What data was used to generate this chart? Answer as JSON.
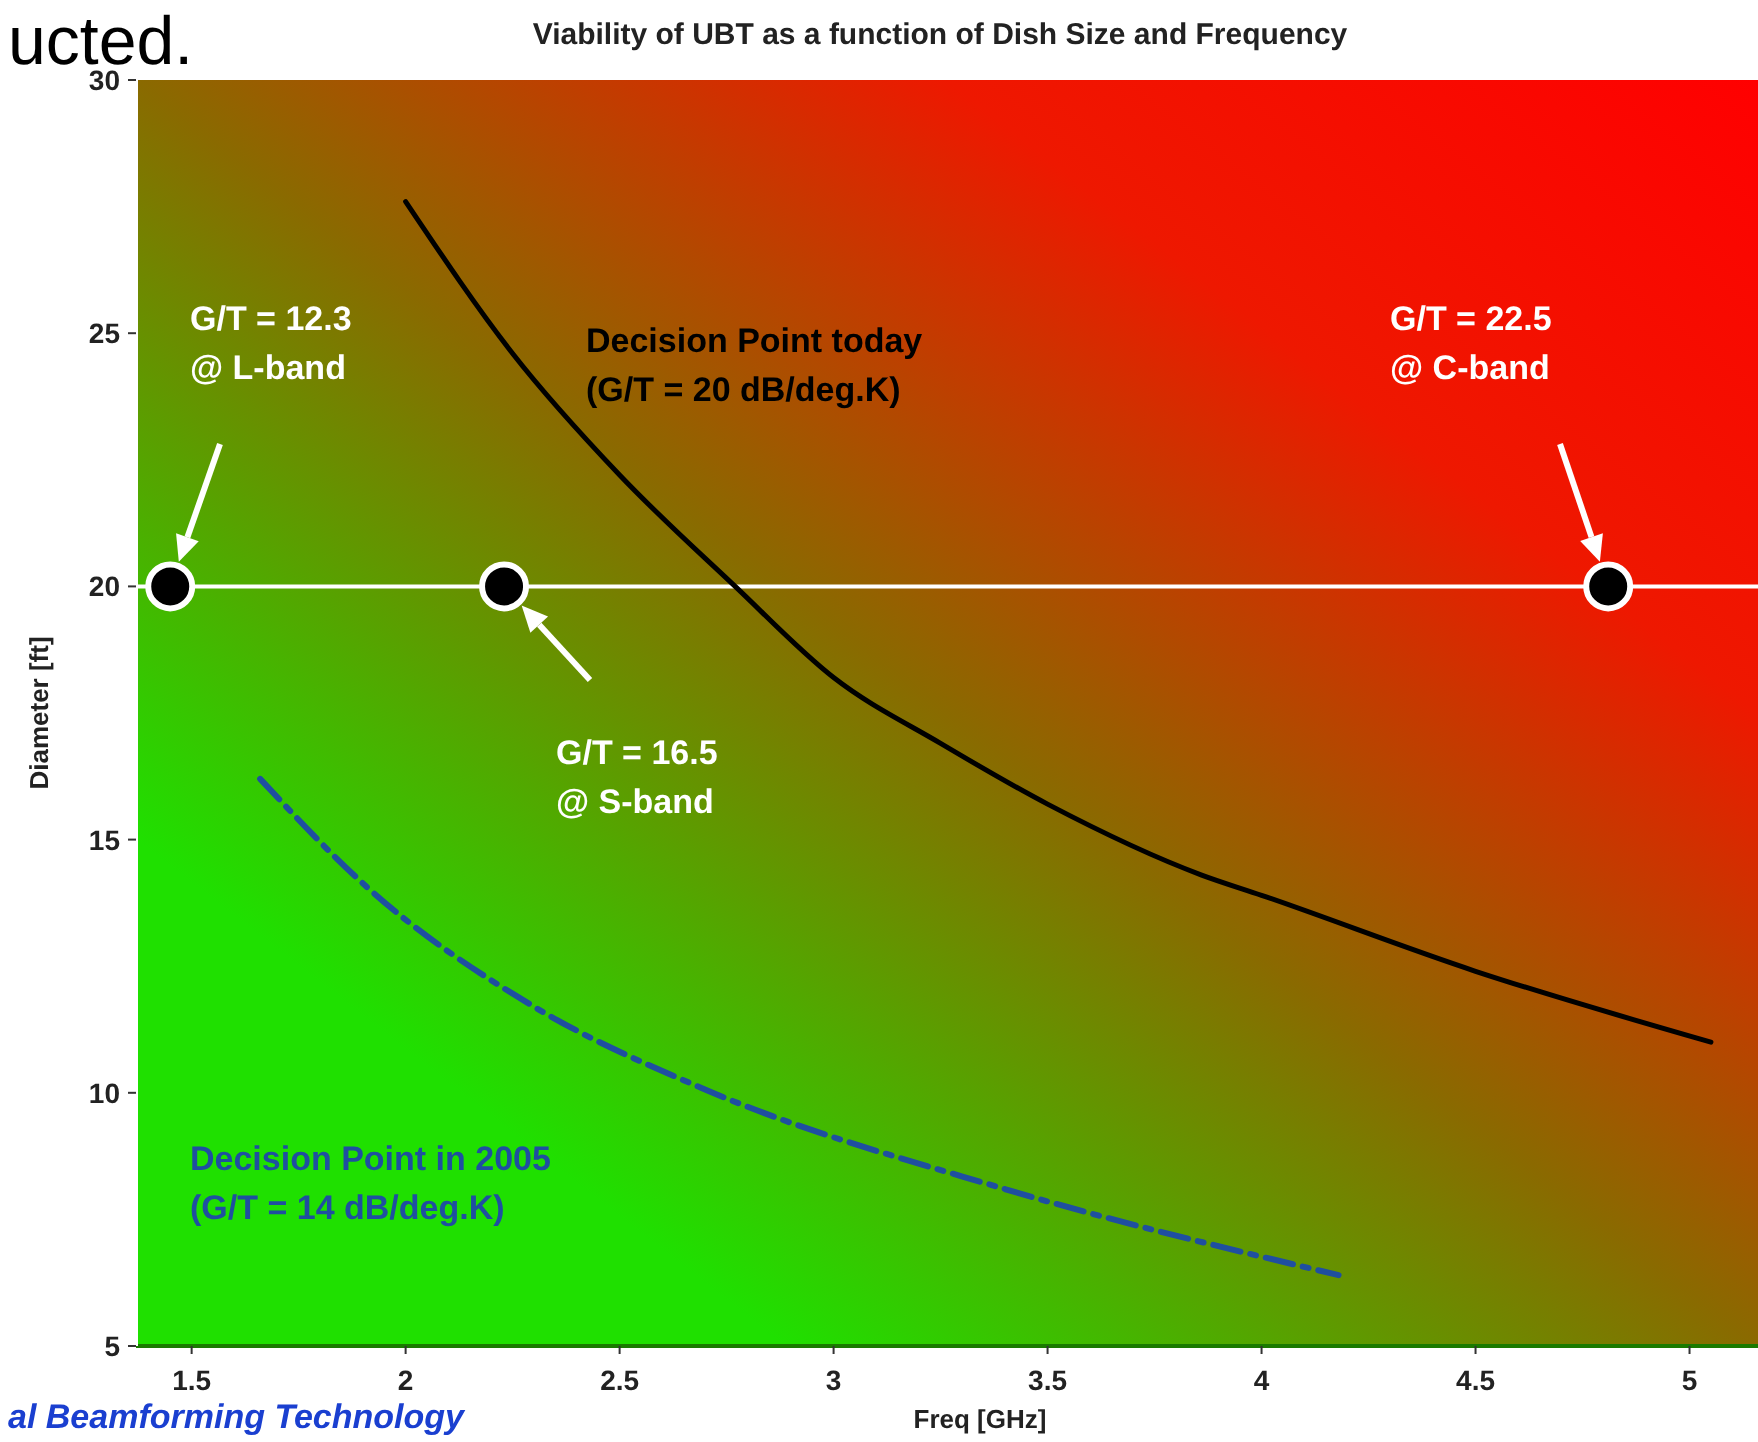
{
  "chart_data": {
    "type": "line",
    "title": "Viability of UBT as a function of Dish Size and Frequency",
    "xlabel": "Freq [GHz]",
    "ylabel": "Diameter [ft]",
    "xlim": [
      1.37,
      5.16
    ],
    "xticks": [
      1.5,
      2,
      2.5,
      3,
      3.5,
      4,
      4.5,
      5
    ],
    "ylim": [
      5,
      30
    ],
    "yticks": [
      5,
      10,
      15,
      20,
      25,
      30
    ],
    "grid": false,
    "series": [
      {
        "name": "Decision Point today\n(G/T = 20 dB/deg.K)",
        "color": "#000000",
        "line_style": "solid",
        "x": [
          2.0,
          2.25,
          2.5,
          2.77,
          3.0,
          3.25,
          3.5,
          3.86,
          4.0,
          4.5,
          5.05
        ],
        "values": [
          27.6,
          24.6,
          22.2,
          20.0,
          18.2,
          16.9,
          15.7,
          14.3,
          13.9,
          12.4,
          11.0
        ]
      },
      {
        "name": "Decision Point in 2005\n(G/T = 14 dB/deg.K)",
        "color": "#1f4fa0",
        "line_style": "dashed",
        "x": [
          1.66,
          1.91,
          2.3,
          2.69,
          3.4,
          4.18
        ],
        "values": [
          16.2,
          14.06,
          11.7,
          10.1,
          8.1,
          6.4
        ]
      },
      {
        "type": "scatter",
        "color": "#000000",
        "marker": "circle",
        "x": [
          1.45,
          2.23,
          4.81
        ],
        "values": [
          20,
          20,
          20
        ]
      }
    ],
    "ref_lines": [
      {
        "axis": "y",
        "value": 20,
        "color": "#ffffff"
      }
    ],
    "annotations": [
      "G/T = 12.3\n@ L-band",
      "G/T = 16.5\n@ S-band",
      "G/T = 22.5\n@ C-band",
      "ucted.",
      "al Beamforming Technology"
    ]
  }
}
